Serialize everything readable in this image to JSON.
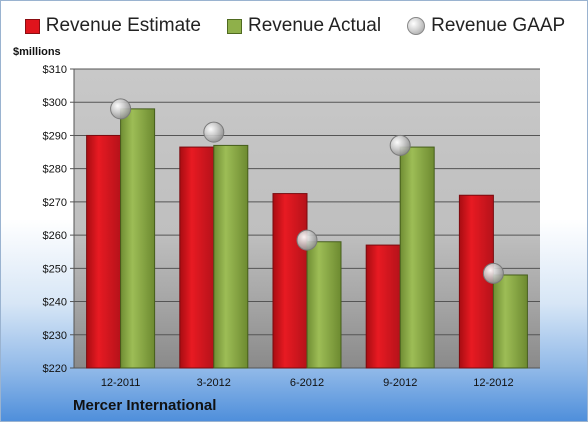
{
  "chart_data": {
    "type": "bar",
    "categories": [
      "12-2011",
      "3-2012",
      "6-2012",
      "9-2012",
      "12-2012"
    ],
    "series": [
      {
        "name": "Revenue Estimate",
        "values": [
          290,
          286.5,
          272.5,
          257,
          272
        ],
        "color": "#e0141c"
      },
      {
        "name": "Revenue Actual",
        "values": [
          298,
          287,
          258,
          286.5,
          248
        ],
        "color": "#8fb04a"
      }
    ],
    "markers": {
      "name": "Revenue GAAP",
      "values": [
        298,
        291,
        258.5,
        287,
        248.5
      ],
      "color": "#b8b8b8"
    },
    "ylabel": "$millions",
    "ylim": [
      220,
      310
    ],
    "yticks": [
      "$220",
      "$230",
      "$240",
      "$250",
      "$260",
      "$270",
      "$280",
      "$290",
      "$300",
      "$310"
    ],
    "grid": true,
    "legend_position": "top"
  },
  "footer": {
    "company": "Mercer International"
  }
}
